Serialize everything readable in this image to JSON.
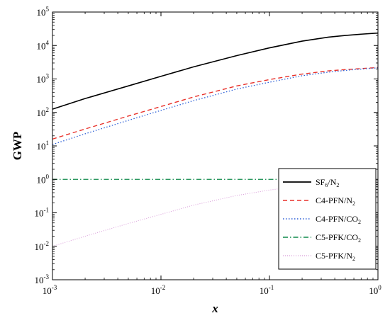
{
  "chart_data": {
    "type": "line",
    "xlabel": "x",
    "ylabel": "GWP",
    "xscale": "log",
    "yscale": "log",
    "xlim": [
      0.001,
      1
    ],
    "ylim": [
      0.001,
      100000
    ],
    "x_ticks": [
      {
        "base": "10",
        "exp": "-3",
        "value": 0.001
      },
      {
        "base": "10",
        "exp": "-2",
        "value": 0.01
      },
      {
        "base": "10",
        "exp": "-1",
        "value": 0.1
      },
      {
        "base": "10",
        "exp": "0",
        "value": 1
      }
    ],
    "y_ticks": [
      {
        "base": "10",
        "exp": "-3",
        "value": 0.001
      },
      {
        "base": "10",
        "exp": "-2",
        "value": 0.01
      },
      {
        "base": "10",
        "exp": "-1",
        "value": 0.1
      },
      {
        "base": "10",
        "exp": "0",
        "value": 1
      },
      {
        "base": "10",
        "exp": "1",
        "value": 10
      },
      {
        "base": "10",
        "exp": "2",
        "value": 100
      },
      {
        "base": "10",
        "exp": "3",
        "value": 1000
      },
      {
        "base": "10",
        "exp": "4",
        "value": 10000
      },
      {
        "base": "10",
        "exp": "5",
        "value": 100000
      }
    ],
    "grid": false,
    "legend_position": "bottom-right",
    "x": [
      0.001,
      0.002,
      0.005,
      0.01,
      0.02,
      0.05,
      0.1,
      0.2,
      0.35,
      0.5,
      0.7,
      1.0
    ],
    "series": [
      {
        "name": "SF6/N2",
        "name_parts": [
          {
            "text": "SF"
          },
          {
            "text": "6",
            "sub": true
          },
          {
            "text": "/N"
          },
          {
            "text": "2",
            "sub": true
          }
        ],
        "color": "#000000",
        "style": "solid",
        "values": [
          125,
          260,
          620,
          1200,
          2300,
          5000,
          8500,
          13500,
          17800,
          20000,
          21800,
          23500
        ]
      },
      {
        "name": "C4-PFN/N2",
        "name_parts": [
          {
            "text": "C4-PFN/N"
          },
          {
            "text": "2",
            "sub": true
          }
        ],
        "color": "#e8312a",
        "style": "dashed",
        "values": [
          16,
          32,
          78,
          150,
          290,
          620,
          960,
          1400,
          1750,
          1900,
          2050,
          2200
        ]
      },
      {
        "name": "C4-PFN/CO2",
        "name_parts": [
          {
            "text": "C4-PFN/CO"
          },
          {
            "text": "2",
            "sub": true
          }
        ],
        "color": "#2c5fd6",
        "style": "dotted",
        "values": [
          11,
          23,
          58,
          115,
          225,
          500,
          800,
          1250,
          1600,
          1800,
          1980,
          2150
        ]
      },
      {
        "name": "C5-PFK/CO2",
        "name_parts": [
          {
            "text": "C5-PFK/CO"
          },
          {
            "text": "2",
            "sub": true
          }
        ],
        "color": "#0e8a4a",
        "style": "dashdot",
        "values": [
          1,
          1,
          1,
          1,
          1,
          1,
          1,
          1,
          1,
          1,
          1,
          1
        ]
      },
      {
        "name": "C5-PFK/N2",
        "name_parts": [
          {
            "text": "C5-PFK/N"
          },
          {
            "text": "2",
            "sub": true
          }
        ],
        "color": "#d89ad8",
        "style": "dotted-fine",
        "values": [
          0.01,
          0.02,
          0.048,
          0.09,
          0.17,
          0.33,
          0.48,
          0.64,
          0.76,
          0.82,
          0.87,
          0.9
        ]
      }
    ]
  }
}
